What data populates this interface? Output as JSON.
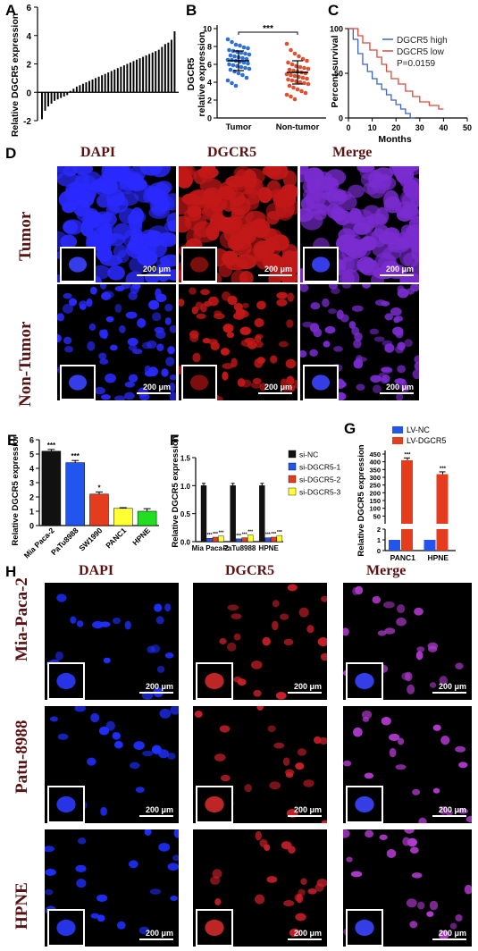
{
  "panels": {
    "A": "A",
    "B": "B",
    "C": "C",
    "D": "D",
    "E": "E",
    "F": "F",
    "G": "G",
    "H": "H"
  },
  "stain_titles": {
    "dapi": "DAPI",
    "dgcr5": "DGCR5",
    "merge": "Merge"
  },
  "d_rows": {
    "tumor": "Tumor",
    "nontumor": "Non-Tumor"
  },
  "h_rows": {
    "mia": "Mia-Paca-2",
    "patu": "Patu-8988",
    "hpne": "HPNE"
  },
  "scale_label": "200 μm",
  "chart_data": [
    {
      "id": "A",
      "type": "bar",
      "ylabel": "Relative DGCR5 expression",
      "ylim": [
        -2,
        6
      ],
      "yticks": [
        -2,
        0,
        2,
        4,
        6
      ],
      "values": [
        -1.9,
        -1.3,
        -1.0,
        -0.8,
        -0.6,
        -0.5,
        -0.4,
        -0.3,
        -0.2,
        0.1,
        0.25,
        0.4,
        0.5,
        0.6,
        0.7,
        0.8,
        0.9,
        1.0,
        1.1,
        1.2,
        1.3,
        1.4,
        1.5,
        1.6,
        1.7,
        1.8,
        1.9,
        2.0,
        2.1,
        2.2,
        2.3,
        2.4,
        2.5,
        2.6,
        2.7,
        2.8,
        2.9,
        3.0,
        3.2,
        3.4,
        3.5,
        3.7,
        4.3
      ]
    },
    {
      "id": "B",
      "type": "scatter",
      "ylabel": "DGCR5 relative expression",
      "ylim": [
        0,
        10
      ],
      "yticks": [
        0,
        2,
        4,
        6,
        8,
        10
      ],
      "categories": [
        "Tumor",
        "Non-tumor"
      ],
      "significance": "***",
      "series": [
        {
          "name": "Tumor",
          "color": "#2f6fd8",
          "mean": 6.4,
          "sd": 1.1,
          "values": [
            8.8,
            8.5,
            8.2,
            8.1,
            7.9,
            7.8,
            7.6,
            7.5,
            7.4,
            7.3,
            7.2,
            7.1,
            7.0,
            6.9,
            6.8,
            6.7,
            6.6,
            6.5,
            6.5,
            6.4,
            6.3,
            6.2,
            6.1,
            6.0,
            5.9,
            5.8,
            5.7,
            5.6,
            5.5,
            5.4,
            5.2,
            5.0,
            4.8,
            4.5,
            4.2,
            3.9,
            3.6
          ]
        },
        {
          "name": "Non-tumor",
          "color": "#e05030",
          "mean": 5.1,
          "sd": 1.3,
          "values": [
            8.3,
            7.6,
            7.2,
            6.9,
            6.6,
            6.4,
            6.2,
            6.0,
            5.8,
            5.7,
            5.6,
            5.5,
            5.4,
            5.3,
            5.2,
            5.1,
            5.0,
            4.9,
            4.8,
            4.7,
            4.6,
            4.5,
            4.4,
            4.3,
            4.2,
            4.1,
            4.0,
            3.9,
            3.8,
            3.6,
            3.4,
            3.2,
            3.0,
            2.8,
            2.6,
            2.4,
            2.1
          ]
        }
      ]
    },
    {
      "id": "C",
      "type": "line",
      "ylabel": "Percent survival",
      "xlabel": "Months",
      "xlim": [
        0,
        50
      ],
      "xticks": [
        0,
        10,
        20,
        30,
        40,
        50
      ],
      "ylim": [
        0,
        100
      ],
      "yticks": [
        0,
        50,
        100
      ],
      "pvalue": "P=0.0159",
      "series": [
        {
          "name": "DGCR5 high",
          "color": "#3b64c8",
          "steps": [
            [
              0,
              100
            ],
            [
              2,
              100
            ],
            [
              2,
              88
            ],
            [
              4,
              88
            ],
            [
              4,
              72
            ],
            [
              6,
              72
            ],
            [
              6,
              60
            ],
            [
              8,
              60
            ],
            [
              8,
              52
            ],
            [
              10,
              52
            ],
            [
              10,
              44
            ],
            [
              12,
              44
            ],
            [
              12,
              38
            ],
            [
              14,
              38
            ],
            [
              14,
              32
            ],
            [
              16,
              32
            ],
            [
              16,
              26
            ],
            [
              18,
              26
            ],
            [
              18,
              20
            ],
            [
              20,
              20
            ],
            [
              20,
              15
            ],
            [
              22,
              15
            ],
            [
              22,
              10
            ],
            [
              24,
              10
            ],
            [
              24,
              5
            ],
            [
              26,
              5
            ],
            [
              26,
              0
            ],
            [
              28,
              0
            ]
          ]
        },
        {
          "name": "DGCR5 low",
          "color": "#d94a3a",
          "steps": [
            [
              0,
              100
            ],
            [
              4,
              100
            ],
            [
              4,
              92
            ],
            [
              6,
              92
            ],
            [
              6,
              84
            ],
            [
              9,
              84
            ],
            [
              9,
              76
            ],
            [
              12,
              76
            ],
            [
              12,
              68
            ],
            [
              14,
              68
            ],
            [
              14,
              60
            ],
            [
              16,
              60
            ],
            [
              16,
              52
            ],
            [
              18,
              52
            ],
            [
              18,
              44
            ],
            [
              21,
              44
            ],
            [
              21,
              38
            ],
            [
              24,
              38
            ],
            [
              24,
              30
            ],
            [
              27,
              30
            ],
            [
              27,
              24
            ],
            [
              30,
              24
            ],
            [
              30,
              18
            ],
            [
              34,
              18
            ],
            [
              34,
              14
            ],
            [
              38,
              14
            ],
            [
              38,
              10
            ],
            [
              40,
              10
            ]
          ]
        }
      ]
    },
    {
      "id": "E",
      "type": "bar",
      "ylabel": "Relative DGCR5 expression",
      "ylim": [
        0,
        6
      ],
      "yticks": [
        0,
        1,
        2,
        3,
        4,
        5,
        6
      ],
      "categories": [
        "Mia Paca-2",
        "PaTu8988",
        "SW1990",
        "PANC1",
        "HPNE"
      ],
      "values": [
        5.2,
        4.4,
        2.2,
        1.2,
        1.0
      ],
      "errors": [
        0.12,
        0.15,
        0.15,
        0.05,
        0.18
      ],
      "colors": [
        "#111111",
        "#2255ee",
        "#e63c1e",
        "#ffff33",
        "#22dd22"
      ],
      "labels": [
        "***",
        "***",
        "*",
        "",
        ""
      ]
    },
    {
      "id": "F",
      "type": "bar",
      "ylabel": "Relative DGCR5 expression",
      "ylim": [
        0,
        1.5
      ],
      "yticks": [
        0.0,
        0.5,
        1.0,
        1.5
      ],
      "categories": [
        "Mia Paca-2",
        "PaTu8988",
        "HPNE"
      ],
      "series": [
        {
          "name": "si-NC",
          "color": "#111111",
          "values": [
            1.0,
            1.0,
            1.0
          ]
        },
        {
          "name": "si-DGCR5-1",
          "color": "#2255ee",
          "values": [
            0.06,
            0.05,
            0.07
          ]
        },
        {
          "name": "si-DGCR5-2",
          "color": "#e63c1e",
          "values": [
            0.08,
            0.07,
            0.08
          ]
        },
        {
          "name": "si-DGCR5-3",
          "color": "#ffff33",
          "values": [
            0.1,
            0.12,
            0.11
          ]
        }
      ],
      "sig_label": "***"
    },
    {
      "id": "G",
      "type": "bar",
      "ylabel": "Relative DGCR5 expression",
      "yticks": [
        0,
        1,
        2,
        50,
        100,
        150,
        200,
        250,
        300,
        350,
        400,
        450
      ],
      "categories": [
        "PANC1",
        "HPNE"
      ],
      "series": [
        {
          "name": "LV-NC",
          "color": "#2255ee",
          "values": [
            1.0,
            1.0
          ]
        },
        {
          "name": "LV-DGCR5",
          "color": "#e63c1e",
          "values": [
            410,
            320
          ]
        }
      ],
      "sig_label": "***"
    }
  ]
}
